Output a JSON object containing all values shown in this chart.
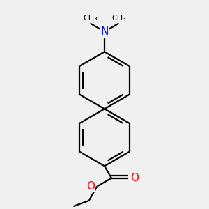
{
  "bg_color": "#f0f0f0",
  "bond_color": "#000000",
  "N_color": "#0000ff",
  "O_color": "#ff0000",
  "line_width": 1.6,
  "inner_double_shrink": 0.18,
  "figsize": [
    3.0,
    3.0
  ],
  "dpi": 100,
  "xlim": [
    -1.4,
    1.4
  ],
  "ylim": [
    -2.8,
    2.8
  ]
}
